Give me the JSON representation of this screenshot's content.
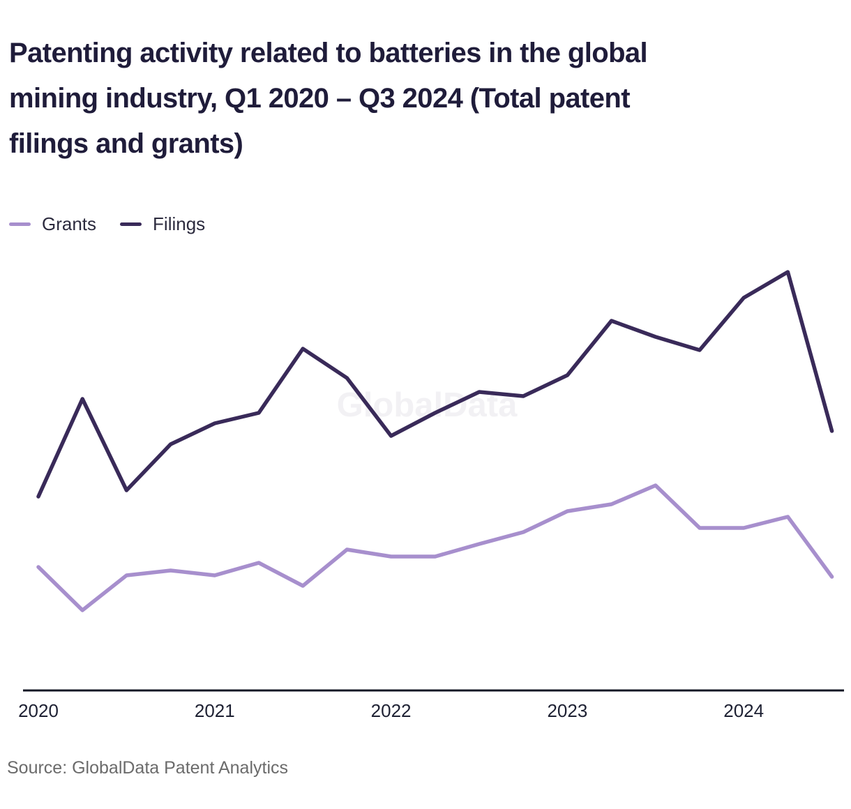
{
  "title_lines": [
    "Patenting activity related to batteries in the global",
    "mining industry, Q1 2020 – Q3 2024 (Total patent",
    "filings and grants)"
  ],
  "watermark": "GlobalData",
  "source": "Source: GlobalData Patent Analytics",
  "chart_data": {
    "type": "line",
    "title": "Patenting activity related to batteries in the global mining industry, Q1 2020 – Q3 2024 (Total patent filings and grants)",
    "x": [
      "Q1 2020",
      "Q2 2020",
      "Q3 2020",
      "Q4 2020",
      "Q1 2021",
      "Q2 2021",
      "Q3 2021",
      "Q4 2021",
      "Q1 2022",
      "Q2 2022",
      "Q3 2022",
      "Q4 2022",
      "Q1 2023",
      "Q2 2023",
      "Q3 2023",
      "Q4 2023",
      "Q1 2024",
      "Q2 2024",
      "Q3 2024"
    ],
    "x_axis_ticks": [
      {
        "label": "2020",
        "index": 0
      },
      {
        "label": "2021",
        "index": 4
      },
      {
        "label": "2022",
        "index": 8
      },
      {
        "label": "2023",
        "index": 12
      },
      {
        "label": "2024",
        "index": 16
      }
    ],
    "series": [
      {
        "name": "Grants",
        "color": "#a78fcd",
        "values": [
          177,
          115,
          165,
          172,
          165,
          183,
          150,
          202,
          192,
          192,
          210,
          227,
          257,
          267,
          294,
          233,
          233,
          249,
          163
        ]
      },
      {
        "name": "Filings",
        "color": "#392a59",
        "values": [
          278,
          418,
          287,
          353,
          383,
          398,
          490,
          448,
          365,
          398,
          428,
          422,
          452,
          530,
          507,
          488,
          563,
          600,
          372
        ]
      }
    ],
    "xlabel": "",
    "ylabel": "",
    "ylim": [
      0,
      650
    ],
    "grid": false,
    "y_axis_visible": false,
    "legend_position": "top-left",
    "axis_color": "#141724"
  }
}
